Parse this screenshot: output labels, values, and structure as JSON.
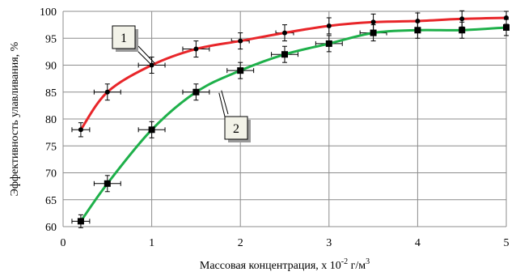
{
  "chart_data": {
    "type": "line",
    "xlabel": "Массовая концентрация, х 10",
    "xlabel_exp": "-2",
    "xlabel_unit": " г/м",
    "xlabel_unit_exp": "3",
    "ylabel": "Эффективность улавливания, %",
    "xlim": [
      0,
      5
    ],
    "ylim": [
      60,
      100
    ],
    "xticks": [
      "0",
      "1",
      "2",
      "3",
      "4",
      "5"
    ],
    "yticks": [
      "60",
      "65",
      "70",
      "75",
      "80",
      "85",
      "90",
      "95",
      "100"
    ],
    "grid": true,
    "series": [
      {
        "name": "1",
        "color": "#e8262a",
        "marker": "circle",
        "x": [
          0.2,
          0.5,
          1.0,
          1.5,
          2.0,
          2.5,
          3.0,
          3.5,
          4.0,
          4.5,
          5.0
        ],
        "y": [
          78,
          85,
          90,
          93,
          94.5,
          96,
          97.3,
          98,
          98.2,
          98.6,
          98.8
        ],
        "x_err": [
          0.1,
          0.15,
          0.15,
          0.15,
          0.1,
          0.1,
          0,
          0,
          0,
          0,
          0
        ],
        "y_err": [
          1.3,
          1.5,
          1.5,
          1.5,
          1.5,
          1.5,
          1.5,
          1.5,
          1.5,
          1.5,
          1.2
        ]
      },
      {
        "name": "2",
        "color": "#1eb04a",
        "marker": "square",
        "x": [
          0.2,
          0.5,
          1.0,
          1.5,
          2.0,
          2.5,
          3.0,
          3.5,
          4.0,
          4.5,
          5.0
        ],
        "y": [
          61,
          68,
          78,
          85,
          89,
          92,
          94,
          96,
          96.5,
          96.5,
          97
        ],
        "x_err": [
          0.1,
          0.15,
          0.15,
          0.15,
          0.15,
          0.15,
          0.15,
          0.15,
          0,
          0,
          0
        ],
        "y_err": [
          1.2,
          1.5,
          1.5,
          1.5,
          1.5,
          1.5,
          1.5,
          1.5,
          1.5,
          1.5,
          1.5
        ]
      }
    ],
    "callouts": [
      {
        "label": "1",
        "series": "1",
        "target_x": 1.0,
        "target_y": 90
      },
      {
        "label": "2",
        "series": "2",
        "target_x": 1.75,
        "target_y": 85
      }
    ]
  }
}
